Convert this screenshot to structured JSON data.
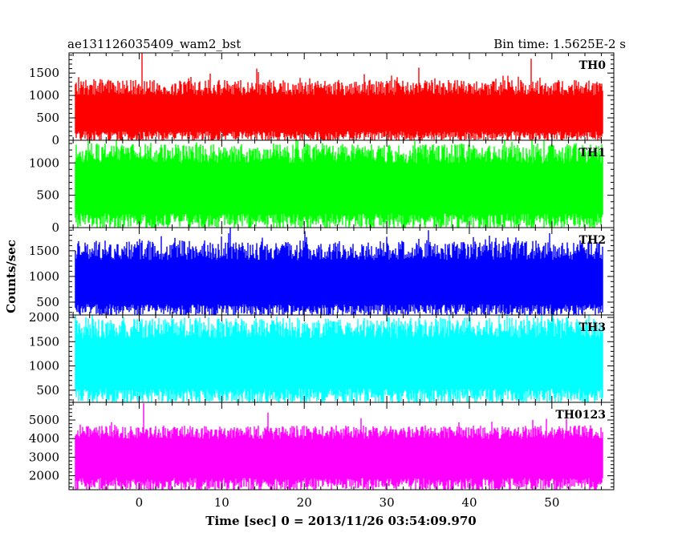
{
  "title_left": "ae131126035409_wam2_bst",
  "title_right": "Bin time: 1.5625E-2 s",
  "xlabel": "Time [sec] 0 = 2013/11/26 03:54:09.970",
  "ylabel": "Counts/sec",
  "chart_data": [
    {
      "type": "line",
      "name": "TH0",
      "color": "#ff0000",
      "ylim": [
        0,
        1950
      ],
      "yticks": [
        0,
        500,
        1000,
        1500
      ],
      "xlim": [
        -8.5,
        57.5
      ],
      "data_x_range": [
        -7.7,
        56.1
      ],
      "mean": 580,
      "typical_max": 1350,
      "peaks": [
        [
          0.3,
          1950
        ],
        [
          47.5,
          1820
        ],
        [
          14.2,
          1600
        ],
        [
          33.9,
          1620
        ]
      ]
    },
    {
      "type": "line",
      "name": "TH1",
      "color": "#00ff00",
      "ylim": [
        0,
        1350
      ],
      "yticks": [
        0,
        500,
        1000
      ],
      "xlim": [
        -8.5,
        57.5
      ],
      "data_x_range": [
        -7.7,
        56.1
      ],
      "mean": 620,
      "typical_max": 1300,
      "peaks": []
    },
    {
      "type": "line",
      "name": "TH2",
      "color": "#0000ff",
      "ylim": [
        250,
        1950
      ],
      "yticks": [
        500,
        1000,
        1500
      ],
      "xlim": [
        -8.5,
        57.5
      ],
      "data_x_range": [
        -7.7,
        56.1
      ],
      "mean": 850,
      "typical_max": 1700,
      "peaks": [
        [
          11.0,
          1950
        ],
        [
          35.0,
          1900
        ],
        [
          20.1,
          1880
        ]
      ]
    },
    {
      "type": "line",
      "name": "TH3",
      "color": "#00ffff",
      "ylim": [
        250,
        2050
      ],
      "yticks": [
        500,
        1000,
        1500,
        2000
      ],
      "xlim": [
        -8.5,
        57.5
      ],
      "data_x_range": [
        -7.7,
        56.1
      ],
      "mean": 1050,
      "typical_max": 2000,
      "peaks": []
    },
    {
      "type": "line",
      "name": "TH0123",
      "color": "#ff00ff",
      "ylim": [
        1250,
        5950
      ],
      "yticks": [
        2000,
        3000,
        4000,
        5000
      ],
      "xticks": [
        0,
        10,
        20,
        30,
        40,
        50
      ],
      "xlim": [
        -8.5,
        57.5
      ],
      "data_x_range": [
        -7.7,
        56.1
      ],
      "mean": 3100,
      "typical_max": 4700,
      "peaks": [
        [
          0.5,
          5900
        ],
        [
          15.6,
          5400
        ],
        [
          26.9,
          5100
        ],
        [
          47.7,
          5000
        ]
      ]
    }
  ]
}
